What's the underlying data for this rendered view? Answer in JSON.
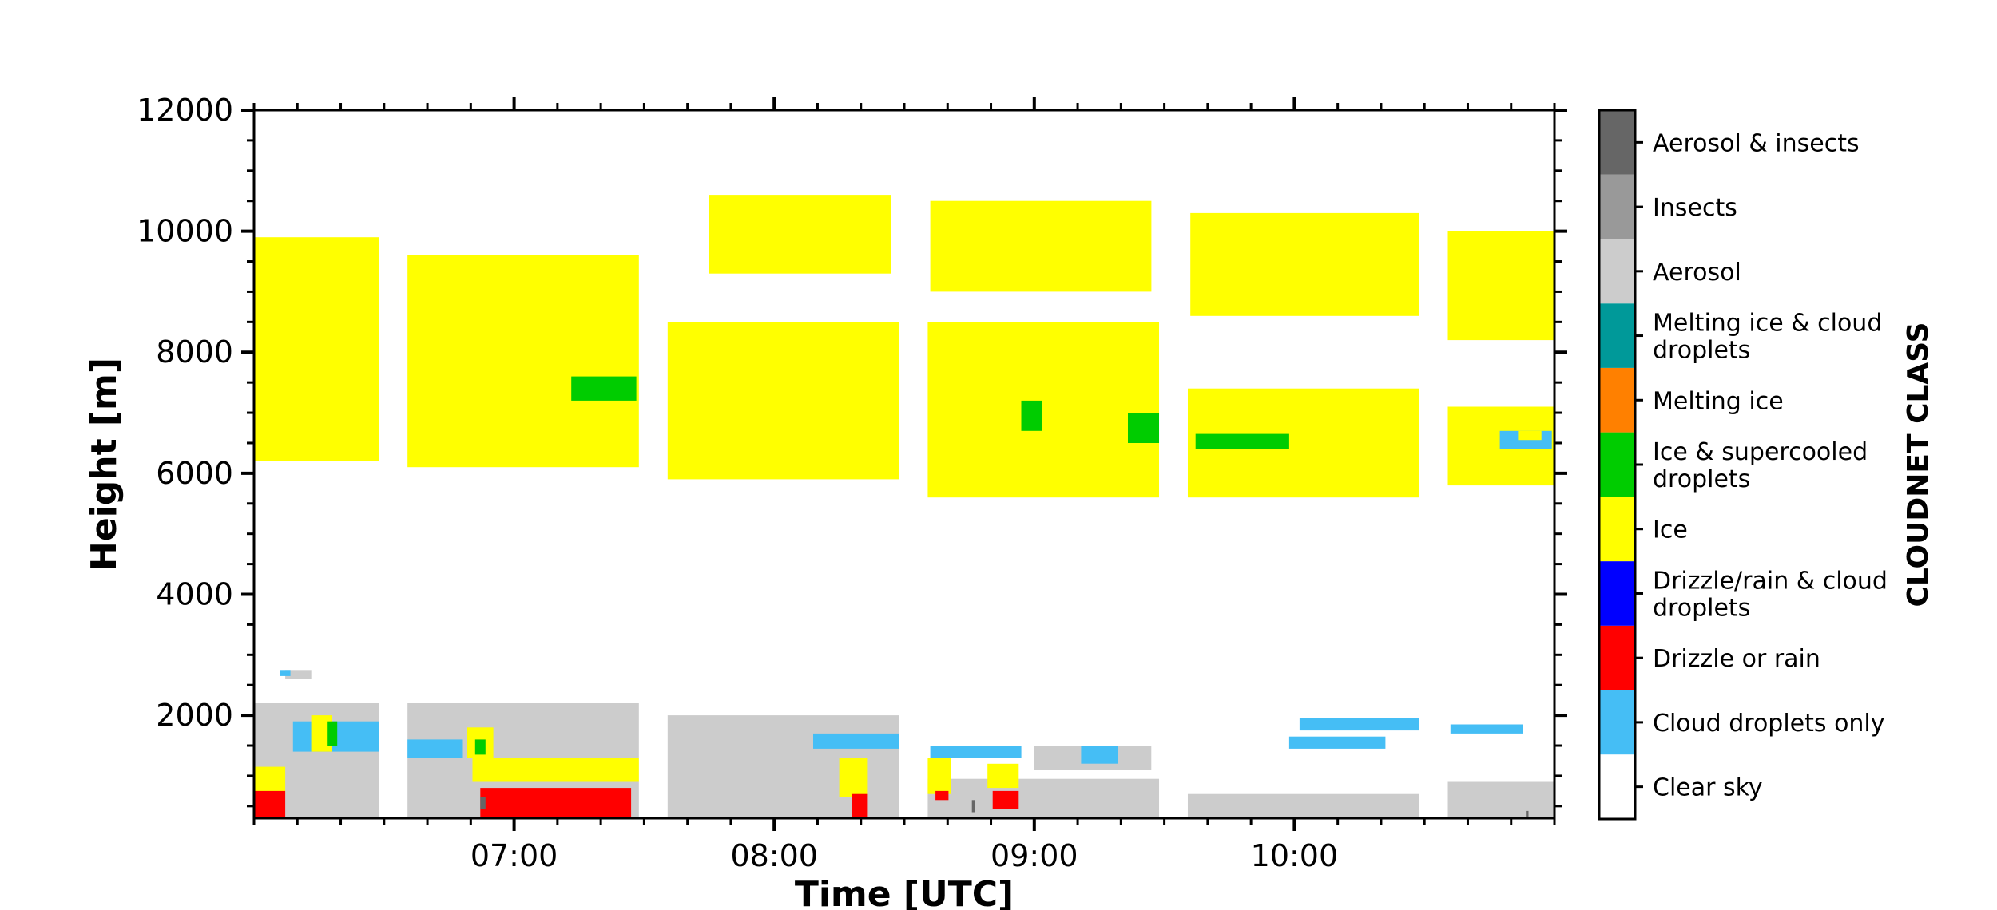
{
  "chart_data": {
    "type": "heatmap",
    "title": "",
    "xlabel": "Time [UTC]",
    "ylabel": "Height [m]",
    "xlim_hours": [
      6.0,
      11.0
    ],
    "ylim": [
      300,
      12000
    ],
    "x_tick_labels": [
      {
        "hour": 7,
        "label": "07:00"
      },
      {
        "hour": 8,
        "label": "08:00"
      },
      {
        "hour": 9,
        "label": "09:00"
      },
      {
        "hour": 10,
        "label": "10:00"
      }
    ],
    "y_ticks": [
      2000,
      4000,
      6000,
      8000,
      10000,
      12000
    ],
    "colorbar": {
      "title": "CLOUDNET CLASS",
      "classes": [
        {
          "name": "Clear sky",
          "lines": [
            "Clear sky"
          ],
          "color": "#ffffff"
        },
        {
          "name": "Cloud droplets only",
          "lines": [
            "Cloud droplets only"
          ],
          "color": "#45bef5"
        },
        {
          "name": "Drizzle or rain",
          "lines": [
            "Drizzle or rain"
          ],
          "color": "#ff0000"
        },
        {
          "name": "Drizzle/rain & cloud droplets",
          "lines": [
            "Drizzle/rain & cloud",
            "droplets"
          ],
          "color": "#0000ff"
        },
        {
          "name": "Ice",
          "lines": [
            "Ice"
          ],
          "color": "#ffff00"
        },
        {
          "name": "Ice & supercooled droplets",
          "lines": [
            "Ice & supercooled",
            "droplets"
          ],
          "color": "#00cc00"
        },
        {
          "name": "Melting ice",
          "lines": [
            "Melting ice"
          ],
          "color": "#ff8000"
        },
        {
          "name": "Melting ice & cloud droplets",
          "lines": [
            "Melting ice & cloud",
            "droplets"
          ],
          "color": "#009999"
        },
        {
          "name": "Aerosol",
          "lines": [
            "Aerosol"
          ],
          "color": "#cccccc"
        },
        {
          "name": "Insects",
          "lines": [
            "Insects"
          ],
          "color": "#999999"
        },
        {
          "name": "Aerosol & insects",
          "lines": [
            "Aerosol & insects"
          ],
          "color": "#666666"
        }
      ]
    },
    "data_gaps_hours": [
      [
        6.48,
        6.59
      ],
      [
        7.48,
        7.59
      ],
      [
        8.48,
        8.59
      ],
      [
        9.48,
        9.59
      ],
      [
        10.48,
        10.59
      ]
    ],
    "regions": [
      {
        "class": "Ice",
        "t0": 6.0,
        "t1": 6.48,
        "h0": 6200,
        "h1": 9900
      },
      {
        "class": "Ice",
        "t0": 6.59,
        "t1": 7.48,
        "h0": 6100,
        "h1": 9600
      },
      {
        "class": "Ice",
        "t0": 7.59,
        "t1": 8.48,
        "h0": 5900,
        "h1": 8500
      },
      {
        "class": "Ice",
        "t0": 8.59,
        "t1": 9.48,
        "h0": 5600,
        "h1": 8500
      },
      {
        "class": "Ice",
        "t0": 9.59,
        "t1": 10.48,
        "h0": 5600,
        "h1": 7400
      },
      {
        "class": "Ice",
        "t0": 9.6,
        "t1": 10.48,
        "h0": 8600,
        "h1": 10300
      },
      {
        "class": "Ice",
        "t0": 8.6,
        "t1": 9.45,
        "h0": 9000,
        "h1": 10500
      },
      {
        "class": "Ice",
        "t0": 7.75,
        "t1": 8.45,
        "h0": 9300,
        "h1": 10600
      },
      {
        "class": "Ice",
        "t0": 10.59,
        "t1": 11.0,
        "h0": 5800,
        "h1": 7100
      },
      {
        "class": "Ice",
        "t0": 10.59,
        "t1": 11.0,
        "h0": 8200,
        "h1": 10000
      },
      {
        "class": "Ice & supercooled droplets",
        "t0": 7.22,
        "t1": 7.47,
        "h0": 7200,
        "h1": 7600
      },
      {
        "class": "Ice & supercooled droplets",
        "t0": 9.36,
        "t1": 9.48,
        "h0": 6500,
        "h1": 7000
      },
      {
        "class": "Ice & supercooled droplets",
        "t0": 9.62,
        "t1": 9.98,
        "h0": 6400,
        "h1": 6650
      },
      {
        "class": "Ice & supercooled droplets",
        "t0": 8.95,
        "t1": 9.03,
        "h0": 6700,
        "h1": 7200
      },
      {
        "class": "Cloud droplets only",
        "t0": 10.79,
        "t1": 10.99,
        "h0": 6400,
        "h1": 6700
      },
      {
        "class": "Ice",
        "t0": 10.86,
        "t1": 10.95,
        "h0": 6550,
        "h1": 6700
      },
      {
        "class": "Aerosol",
        "t0": 6.0,
        "t1": 6.48,
        "h0": 300,
        "h1": 2200
      },
      {
        "class": "Aerosol",
        "t0": 6.59,
        "t1": 7.48,
        "h0": 300,
        "h1": 2200
      },
      {
        "class": "Aerosol",
        "t0": 7.59,
        "t1": 8.48,
        "h0": 300,
        "h1": 2000
      },
      {
        "class": "Aerosol",
        "t0": 8.59,
        "t1": 9.48,
        "h0": 300,
        "h1": 950
      },
      {
        "class": "Aerosol",
        "t0": 9.59,
        "t1": 10.48,
        "h0": 300,
        "h1": 700
      },
      {
        "class": "Aerosol",
        "t0": 10.59,
        "t1": 11.0,
        "h0": 300,
        "h1": 900
      },
      {
        "class": "Aerosol",
        "t0": 6.12,
        "t1": 6.22,
        "h0": 2600,
        "h1": 2750
      },
      {
        "class": "Aerosol",
        "t0": 9.0,
        "t1": 9.45,
        "h0": 1100,
        "h1": 1500
      },
      {
        "class": "Cloud droplets only",
        "t0": 6.15,
        "t1": 6.48,
        "h0": 1400,
        "h1": 1900
      },
      {
        "class": "Cloud droplets only",
        "t0": 6.59,
        "t1": 6.8,
        "h0": 1300,
        "h1": 1600
      },
      {
        "class": "Cloud droplets only",
        "t0": 8.15,
        "t1": 8.48,
        "h0": 1450,
        "h1": 1700
      },
      {
        "class": "Cloud droplets only",
        "t0": 8.6,
        "t1": 8.95,
        "h0": 1300,
        "h1": 1500
      },
      {
        "class": "Cloud droplets only",
        "t0": 9.18,
        "t1": 9.32,
        "h0": 1200,
        "h1": 1500
      },
      {
        "class": "Cloud droplets only",
        "t0": 10.02,
        "t1": 10.48,
        "h0": 1750,
        "h1": 1950
      },
      {
        "class": "Cloud droplets only",
        "t0": 9.98,
        "t1": 10.35,
        "h0": 1450,
        "h1": 1650
      },
      {
        "class": "Cloud droplets only",
        "t0": 10.6,
        "t1": 10.88,
        "h0": 1700,
        "h1": 1850
      },
      {
        "class": "Cloud droplets only",
        "t0": 6.1,
        "t1": 6.14,
        "h0": 2650,
        "h1": 2750
      },
      {
        "class": "Ice",
        "t0": 6.22,
        "t1": 6.3,
        "h0": 1400,
        "h1": 2000
      },
      {
        "class": "Ice & supercooled droplets",
        "t0": 6.28,
        "t1": 6.32,
        "h0": 1500,
        "h1": 1900
      },
      {
        "class": "Ice",
        "t0": 6.0,
        "t1": 6.12,
        "h0": 700,
        "h1": 1150
      },
      {
        "class": "Ice",
        "t0": 6.84,
        "t1": 7.48,
        "h0": 900,
        "h1": 1300
      },
      {
        "class": "Ice",
        "t0": 6.82,
        "t1": 6.92,
        "h0": 1300,
        "h1": 1800
      },
      {
        "class": "Ice & supercooled droplets",
        "t0": 6.85,
        "t1": 6.89,
        "h0": 1350,
        "h1": 1600
      },
      {
        "class": "Ice",
        "t0": 8.25,
        "t1": 8.36,
        "h0": 650,
        "h1": 1300
      },
      {
        "class": "Ice",
        "t0": 8.59,
        "t1": 8.68,
        "h0": 700,
        "h1": 1300
      },
      {
        "class": "Ice",
        "t0": 8.82,
        "t1": 8.94,
        "h0": 800,
        "h1": 1200
      },
      {
        "class": "Drizzle or rain",
        "t0": 6.0,
        "t1": 6.12,
        "h0": 300,
        "h1": 750
      },
      {
        "class": "Drizzle or rain",
        "t0": 6.87,
        "t1": 7.45,
        "h0": 300,
        "h1": 800
      },
      {
        "class": "Drizzle or rain",
        "t0": 8.3,
        "t1": 8.36,
        "h0": 300,
        "h1": 700
      },
      {
        "class": "Drizzle or rain",
        "t0": 8.62,
        "t1": 8.67,
        "h0": 600,
        "h1": 750
      },
      {
        "class": "Drizzle or rain",
        "t0": 8.84,
        "t1": 8.94,
        "h0": 450,
        "h1": 750
      },
      {
        "class": "Aerosol & insects",
        "t0": 6.87,
        "t1": 6.89,
        "h0": 450,
        "h1": 650
      },
      {
        "class": "Aerosol & insects",
        "t0": 8.76,
        "t1": 8.77,
        "h0": 400,
        "h1": 600
      },
      {
        "class": "Aerosol & insects",
        "t0": 10.89,
        "t1": 10.9,
        "h0": 300,
        "h1": 420
      }
    ]
  }
}
